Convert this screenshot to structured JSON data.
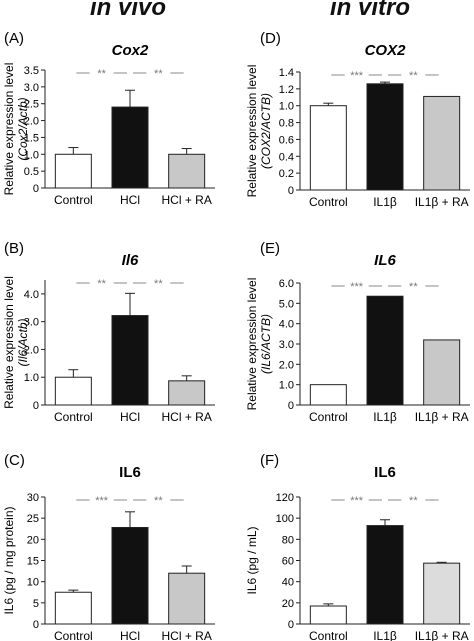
{
  "column_titles": {
    "left": "in vivo",
    "right": "in vitro"
  },
  "colors": {
    "control": "#ffffff",
    "treated": "#111111",
    "ra": "#c8c8c8",
    "ra_light": "#dcdcdc",
    "axis": "#222222",
    "bracket": "#888888"
  },
  "chart_data": [
    {
      "type": "bar",
      "panel": "(A)",
      "title": "Cox2",
      "title_italic": true,
      "ylabel": [
        "Relative expression level",
        "(Cox2/Actb)"
      ],
      "categories": [
        "Control",
        "HCl",
        "HCl + RA"
      ],
      "values": [
        1.0,
        2.4,
        1.0
      ],
      "errors": [
        0.2,
        0.5,
        0.17
      ],
      "ylim": [
        0,
        3.5
      ],
      "yticks": [
        0,
        0.5,
        1.0,
        1.5,
        2.0,
        2.5,
        3.0,
        3.5
      ],
      "ytick_labels": [
        "0",
        "0.5",
        "1.0",
        "1.5",
        "2.0",
        "2.5",
        "3.0",
        "3.5"
      ],
      "significance": [
        {
          "from": 0,
          "to": 1,
          "label": "**"
        },
        {
          "from": 1,
          "to": 2,
          "label": "**"
        }
      ]
    },
    {
      "type": "bar",
      "panel": "(D)",
      "title": "COX2",
      "title_italic": true,
      "ylabel": [
        "Relative expression level",
        "(COX2/ACTB)"
      ],
      "categories": [
        "Control",
        "IL1β",
        "IL1β + RA"
      ],
      "values": [
        1.0,
        1.26,
        1.11
      ],
      "errors": [
        0.03,
        0.02,
        0.0
      ],
      "ylim": [
        0,
        1.4
      ],
      "yticks": [
        0,
        0.2,
        0.4,
        0.6,
        0.8,
        1.0,
        1.2,
        1.4
      ],
      "ytick_labels": [
        "0",
        "0.2",
        "0.4",
        "0.6",
        "0.8",
        "1.0",
        "1.2",
        "1.4"
      ],
      "significance": [
        {
          "from": 0,
          "to": 1,
          "label": "***"
        },
        {
          "from": 1,
          "to": 2,
          "label": "**"
        }
      ]
    },
    {
      "type": "bar",
      "panel": "(B)",
      "title": "Il6",
      "title_italic": true,
      "ylabel": [
        "Relative expression level",
        "(Il6/Actb)"
      ],
      "categories": [
        "Control",
        "HCl",
        "HCl + RA"
      ],
      "values": [
        1.0,
        3.22,
        0.87
      ],
      "errors": [
        0.27,
        0.8,
        0.18
      ],
      "ylim": [
        0,
        4.5
      ],
      "yticks": [
        0,
        1.0,
        2.0,
        3.0,
        4.0
      ],
      "ytick_labels": [
        "0",
        "1.0",
        "2.0",
        "3.0",
        "4.0"
      ],
      "significance": [
        {
          "from": 0,
          "to": 1,
          "label": "**"
        },
        {
          "from": 1,
          "to": 2,
          "label": "**"
        }
      ]
    },
    {
      "type": "bar",
      "panel": "(E)",
      "title": "IL6",
      "title_italic": true,
      "ylabel": [
        "Relative expression level",
        "(IL6/ACTB)"
      ],
      "categories": [
        "Control",
        "IL1β",
        "IL1β + RA"
      ],
      "values": [
        1.0,
        5.35,
        3.2
      ],
      "errors": [
        0.0,
        0.0,
        0.0
      ],
      "ylim": [
        0,
        6.0
      ],
      "yticks": [
        0,
        1.0,
        2.0,
        3.0,
        4.0,
        5.0,
        6.0
      ],
      "ytick_labels": [
        "0",
        "1.0",
        "2.0",
        "3.0",
        "4.0",
        "5.0",
        "6.0"
      ],
      "significance": [
        {
          "from": 0,
          "to": 1,
          "label": "***"
        },
        {
          "from": 1,
          "to": 2,
          "label": "**"
        }
      ]
    },
    {
      "type": "bar",
      "panel": "(C)",
      "title": "IL6",
      "title_italic": false,
      "ylabel": [
        "IL6  (pg / mg protein)"
      ],
      "categories": [
        "Control",
        "HCl",
        "HCl + RA"
      ],
      "values": [
        7.5,
        22.8,
        12.0
      ],
      "errors": [
        0.5,
        3.7,
        1.7
      ],
      "ylim": [
        0,
        30
      ],
      "yticks": [
        0,
        5,
        10,
        15,
        20,
        25,
        30
      ],
      "ytick_labels": [
        "0",
        "5",
        "10",
        "15",
        "20",
        "25",
        "30"
      ],
      "significance": [
        {
          "from": 0,
          "to": 1,
          "label": "***"
        },
        {
          "from": 1,
          "to": 2,
          "label": "**"
        }
      ]
    },
    {
      "type": "bar",
      "panel": "(F)",
      "title": "IL6",
      "title_italic": false,
      "ylabel": [
        "IL6  (pg / mL)"
      ],
      "categories": [
        "Control",
        "IL1β",
        "IL1β + RA"
      ],
      "values": [
        17.0,
        93.0,
        57.5
      ],
      "errors": [
        2.0,
        5.5,
        0.8
      ],
      "ylim": [
        0,
        120
      ],
      "yticks": [
        0,
        20,
        40,
        60,
        80,
        100,
        120
      ],
      "ytick_labels": [
        "0",
        "20",
        "40",
        "60",
        "80",
        "100",
        "120"
      ],
      "significance": [
        {
          "from": 0,
          "to": 1,
          "label": "***"
        },
        {
          "from": 1,
          "to": 2,
          "label": "**"
        }
      ]
    }
  ]
}
